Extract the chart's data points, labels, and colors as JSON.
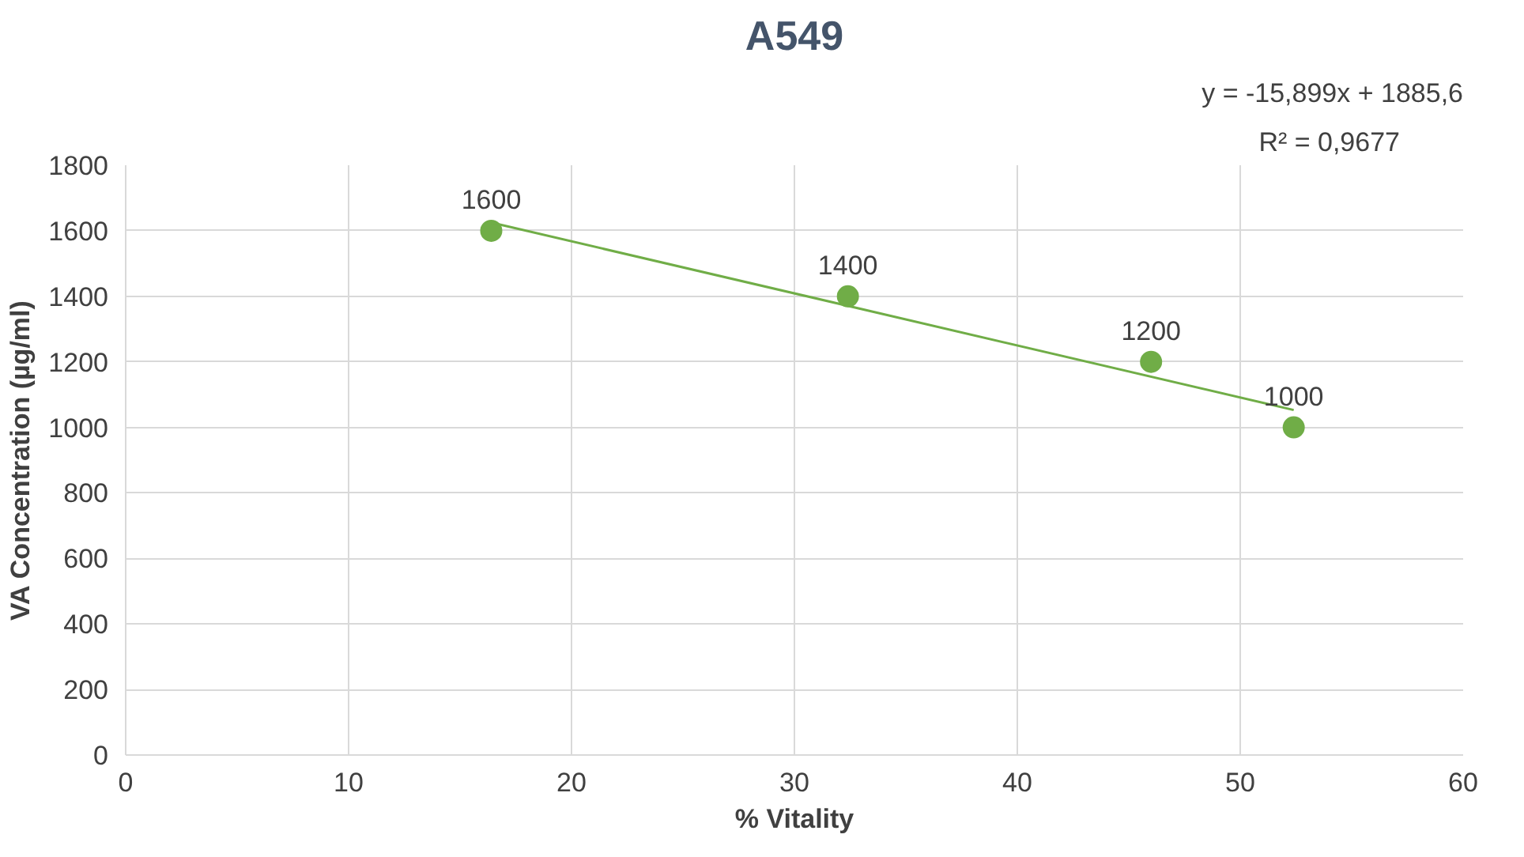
{
  "chart_data": {
    "type": "scatter",
    "title": "A549",
    "xlabel": "% Vitality",
    "ylabel": "VA Concentration (µg/ml)",
    "x": [
      16.4,
      32.4,
      46.0,
      52.4
    ],
    "series": [
      {
        "color": "#70ad47",
        "values": [
          1600,
          1400,
          1200,
          1000
        ],
        "data_labels": true,
        "marker": "circle"
      },
      {
        "type": "line",
        "color": "#70ad47",
        "x": [
          16.4,
          52.4
        ],
        "values": [
          1625,
          1053
        ],
        "line_style": "solid"
      }
    ],
    "annotations": [
      "y = -15,899x + 1885,6",
      "R² = 0,9677"
    ],
    "xlim": [
      0,
      60
    ],
    "xticks": [
      0,
      10,
      20,
      30,
      40,
      50,
      60
    ],
    "ylim": [
      0,
      1800
    ],
    "yticks": [
      0,
      200,
      400,
      600,
      800,
      1000,
      1200,
      1400,
      1600,
      1800
    ],
    "grid": true
  }
}
